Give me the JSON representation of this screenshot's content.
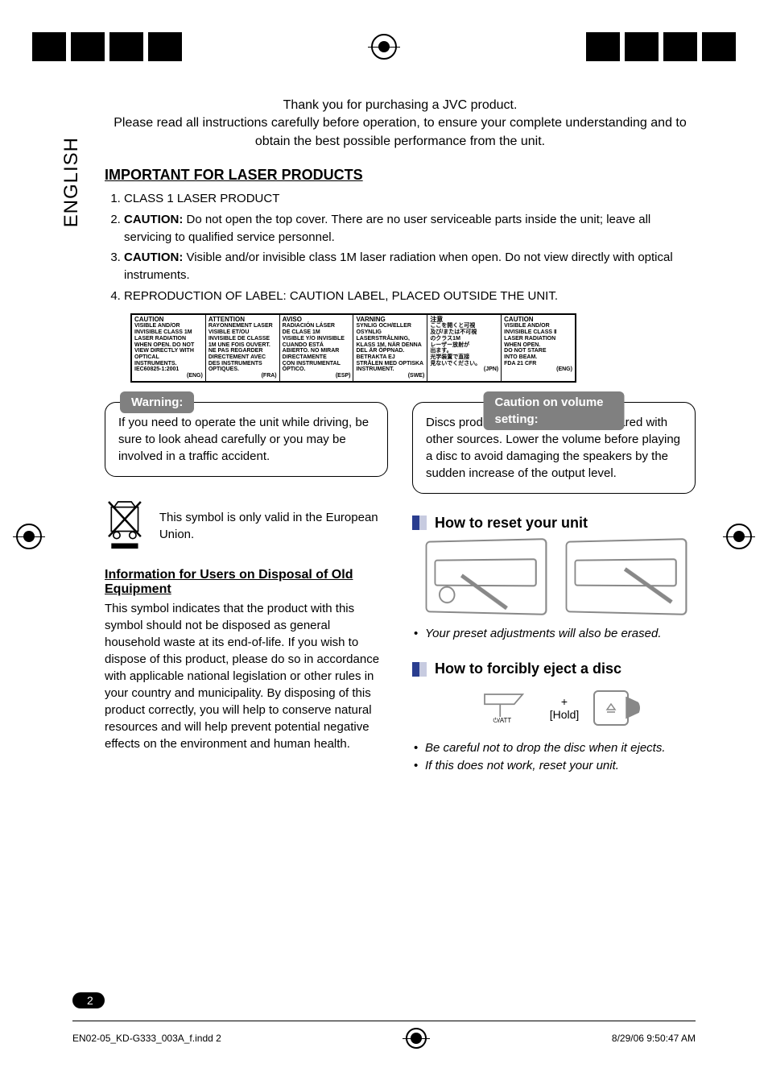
{
  "language_tab": "ENGLISH",
  "intro_line1": "Thank you for purchasing a JVC product.",
  "intro_line2": "Please read all instructions carefully before operation, to ensure your complete understanding and to obtain the best possible performance from the unit.",
  "laser": {
    "title": "IMPORTANT FOR LASER PRODUCTS",
    "items": [
      "CLASS 1 LASER PRODUCT",
      "CAUTION: Do not open the top cover. There are no user serviceable parts inside the unit; leave all servicing to qualified service personnel.",
      "CAUTION: Visible and/or invisible class 1M laser radiation when open. Do not view directly with optical instruments.",
      "REPRODUCTION OF LABEL: CAUTION LABEL, PLACED OUTSIDE THE UNIT."
    ],
    "item2_bold": "CAUTION:",
    "item2_rest": " Do not open the top cover. There are no user serviceable parts inside the unit; leave all servicing to qualified service personnel.",
    "item3_bold": "CAUTION:",
    "item3_rest": " Visible and/or invisible class 1M laser radiation when open. Do not view directly with optical instruments."
  },
  "label_cols": [
    {
      "hdr": "CAUTION",
      "body": "VISIBLE AND/OR\nINVISIBLE CLASS 1M\nLASER RADIATION\nWHEN OPEN. DO NOT\nVIEW DIRECTLY WITH\nOPTICAL INSTRUMENTS.\nIEC60825-1:2001",
      "tag": "(ENG)"
    },
    {
      "hdr": "ATTENTION",
      "body": "RAYONNEMENT LASER\nVISIBLE ET/OU\nINVISIBLE DE CLASSE\n1M UNE FOIS OUVERT.\nNE PAS REGARDER\nDIRECTEMENT AVEC\nDES INSTRUMENTS\nOPTIQUES.",
      "tag": "(FRA)"
    },
    {
      "hdr": "AVISO",
      "body": "RADIACIÓN LÁSER\nDE CLASE 1M\nVISIBLE Y/O INVISIBLE\nCUANDO ESTÁ\nABIERTO. NO MIRAR\nDIRECTAMENTE\nCON INSTRUMENTAL\nÓPTICO.",
      "tag": "(ESP)"
    },
    {
      "hdr": "VARNING",
      "body": "SYNLIG OCH/ELLER\nOSYNLIG\nLASERSTRÅLNING,\nKLASS 1M, NÄR DENNA\nDEL ÄR ÖPPNAD.\nBETRAKTA EJ\nSTRÅLEN MED OPTISKA\nINSTRUMENT.",
      "tag": "(SWE)"
    },
    {
      "hdr": "注意",
      "body": "ここを開くと可視\n及び/または不可視\nのクラス1M\nレーザー放射が\n出ます。\n光学装置で直接\n見ないでください。",
      "tag": "(JPN)"
    },
    {
      "hdr": "CAUTION",
      "body": "VISIBLE AND/OR\nINVISIBLE CLASS Ⅱ\nLASER RADIATION\nWHEN OPEN.\nDO NOT STARE\nINTO BEAM.\nFDA 21 CFR",
      "tag": "(ENG)"
    }
  ],
  "warning": {
    "tag": "Warning:",
    "body": "If you need to operate the unit while driving, be sure to look ahead carefully or you may be involved in a traffic accident."
  },
  "caution_volume": {
    "tag": "Caution on volume setting:",
    "body": "Discs produce very little noise compared with other sources. Lower the volume before playing a disc to avoid damaging the speakers by the sudden increase of the output level."
  },
  "weee": {
    "caption": "This symbol is only valid in the European Union.",
    "title": "Information for Users on Disposal of Old Equipment",
    "body": "This symbol indicates that the product with this symbol should not be disposed as general household waste at its end-of-life. If you wish to dispose of this product, please do so in accordance with applicable national legislation or other rules in your country and municipality. By disposing of this product correctly, you will help to conserve natural resources and will help prevent potential negative effects on the environment and human health."
  },
  "reset": {
    "title": "How to reset your unit",
    "note": "Your preset adjustments will also be erased."
  },
  "eject": {
    "title": "How to forcibly eject a disc",
    "plus": "+",
    "hold": "[Hold]",
    "note1": "Be careful not to drop the disc when it ejects.",
    "note2": "If this does not work, reset your unit."
  },
  "page_number": "2",
  "footer": {
    "file": "EN02-05_KD-G333_003A_f.indd   2",
    "date": "8/29/06   9:50:47 AM"
  },
  "colors": {
    "tag_bg": "#808080",
    "tag_fg": "#ffffff",
    "accent_blue": "#2a3d8f",
    "accent_light": "#c7cbe0",
    "line_gray": "#888888"
  }
}
